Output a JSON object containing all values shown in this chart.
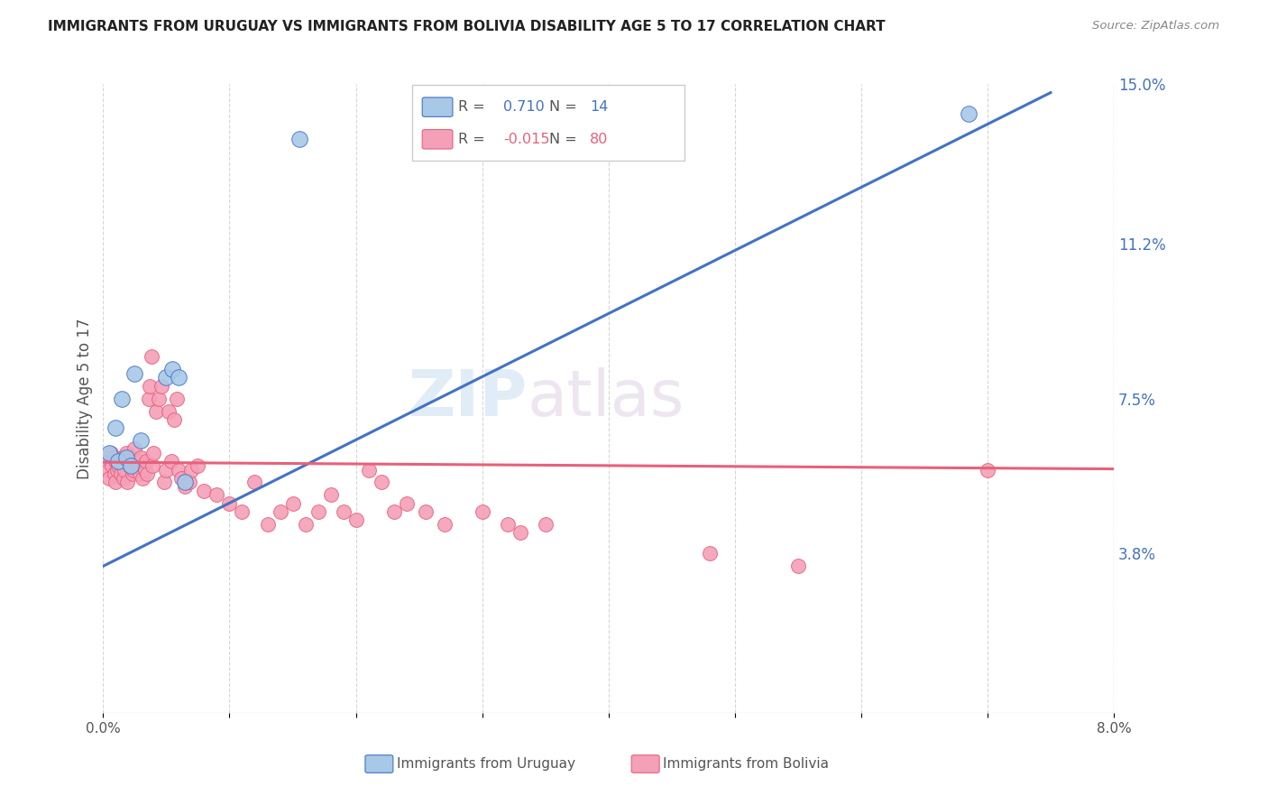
{
  "title": "IMMIGRANTS FROM URUGUAY VS IMMIGRANTS FROM BOLIVIA DISABILITY AGE 5 TO 17 CORRELATION CHART",
  "source": "Source: ZipAtlas.com",
  "xlabel_bottom": "Immigrants from Uruguay",
  "xlabel_bottom2": "Immigrants from Bolivia",
  "ylabel": "Disability Age 5 to 17",
  "xlim": [
    0.0,
    8.0
  ],
  "ylim": [
    0.0,
    15.0
  ],
  "yticks_right": [
    3.8,
    7.5,
    11.2,
    15.0
  ],
  "ytick_labels_right": [
    "3.8%",
    "7.5%",
    "11.2%",
    "15.0%"
  ],
  "color_blue": "#A8C8E8",
  "color_pink": "#F4A0B8",
  "color_blue_line": "#4472C4",
  "color_pink_line": "#E8607A",
  "watermark_zip": "ZIP",
  "watermark_atlas": "atlas",
  "blue_scatter_x": [
    0.05,
    0.1,
    0.12,
    0.15,
    0.18,
    0.22,
    0.25,
    0.3,
    0.5,
    0.55,
    0.6,
    0.65,
    1.55,
    6.85
  ],
  "blue_scatter_y": [
    6.2,
    6.8,
    6.0,
    7.5,
    6.1,
    5.9,
    8.1,
    6.5,
    8.0,
    8.2,
    8.0,
    5.5,
    13.7,
    14.3
  ],
  "pink_scatter_x": [
    0.02,
    0.04,
    0.05,
    0.06,
    0.07,
    0.08,
    0.09,
    0.1,
    0.1,
    0.11,
    0.12,
    0.13,
    0.14,
    0.15,
    0.16,
    0.17,
    0.18,
    0.19,
    0.2,
    0.21,
    0.22,
    0.23,
    0.24,
    0.25,
    0.26,
    0.27,
    0.28,
    0.29,
    0.3,
    0.31,
    0.32,
    0.33,
    0.34,
    0.35,
    0.36,
    0.37,
    0.38,
    0.39,
    0.4,
    0.42,
    0.44,
    0.46,
    0.48,
    0.5,
    0.52,
    0.54,
    0.56,
    0.58,
    0.6,
    0.62,
    0.65,
    0.68,
    0.7,
    0.75,
    0.8,
    0.9,
    1.0,
    1.1,
    1.2,
    1.3,
    1.4,
    1.5,
    1.6,
    1.7,
    1.8,
    1.9,
    2.0,
    2.1,
    2.2,
    2.3,
    2.4,
    2.55,
    2.7,
    3.0,
    3.2,
    3.3,
    3.5,
    4.8,
    5.5,
    7.0
  ],
  "pink_scatter_y": [
    6.0,
    5.8,
    5.6,
    6.2,
    5.9,
    6.1,
    5.7,
    6.0,
    5.5,
    5.8,
    5.9,
    6.0,
    5.7,
    6.1,
    5.6,
    5.8,
    6.2,
    5.5,
    6.0,
    5.9,
    6.1,
    5.7,
    5.8,
    6.3,
    5.9,
    6.0,
    5.8,
    5.7,
    6.1,
    5.6,
    5.9,
    5.8,
    6.0,
    5.7,
    7.5,
    7.8,
    8.5,
    5.9,
    6.2,
    7.2,
    7.5,
    7.8,
    5.5,
    5.8,
    7.2,
    6.0,
    7.0,
    7.5,
    5.8,
    5.6,
    5.4,
    5.5,
    5.8,
    5.9,
    5.3,
    5.2,
    5.0,
    4.8,
    5.5,
    4.5,
    4.8,
    5.0,
    4.5,
    4.8,
    5.2,
    4.8,
    4.6,
    5.8,
    5.5,
    4.8,
    5.0,
    4.8,
    4.5,
    4.8,
    4.5,
    4.3,
    4.5,
    3.8,
    3.5,
    5.8
  ],
  "blue_trend_x": [
    0.0,
    7.5
  ],
  "blue_trend_y": [
    3.5,
    14.8
  ],
  "pink_trend_x": [
    0.0,
    8.0
  ],
  "pink_trend_y": [
    5.98,
    5.82
  ]
}
